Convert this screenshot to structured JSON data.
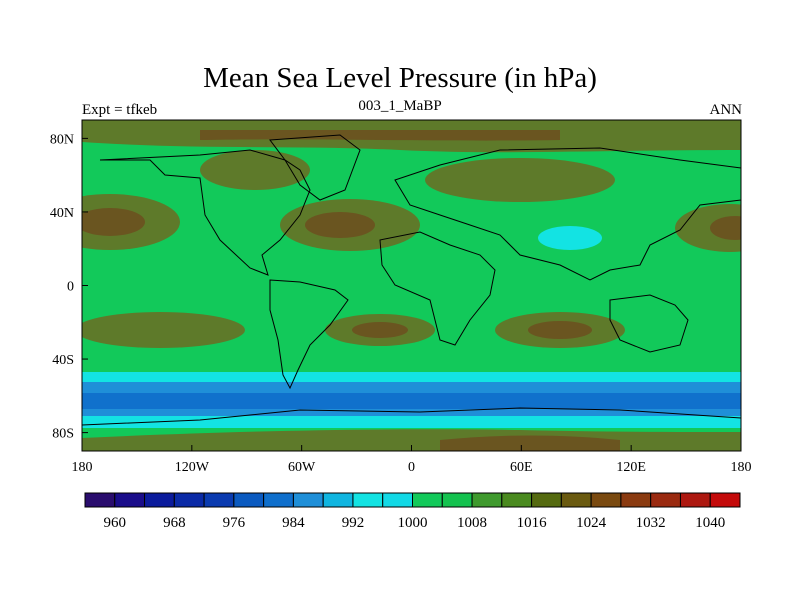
{
  "map": {
    "title": "Mean Sea Level Pressure (in hPa)",
    "subtitle": "003_1_MaBP",
    "left_label": "Expt = tfkeb",
    "right_label": "ANN",
    "lon_ticks": [
      "180",
      "120W",
      "60W",
      "0",
      "60E",
      "120E",
      "180"
    ],
    "lon_values": [
      -180,
      -120,
      -60,
      0,
      60,
      120,
      180
    ],
    "lat_ticks": [
      "80N",
      "40N",
      "0",
      "40S",
      "80S"
    ],
    "lat_values": [
      80,
      40,
      0,
      -40,
      -80
    ]
  },
  "colorbar": {
    "labels": [
      "960",
      "968",
      "976",
      "984",
      "992",
      "1000",
      "1008",
      "1016",
      "1024",
      "1032",
      "1040"
    ],
    "label_values": [
      960,
      968,
      976,
      984,
      992,
      1000,
      1008,
      1016,
      1024,
      1032,
      1040
    ],
    "boundaries": [
      956,
      960,
      964,
      968,
      972,
      976,
      980,
      984,
      988,
      992,
      996,
      1000,
      1004,
      1008,
      1012,
      1016,
      1020,
      1024,
      1028,
      1032,
      1036,
      1040,
      1044
    ],
    "colors": [
      "#2a0d6e",
      "#1a0d8a",
      "#0b1b9c",
      "#0a2aa6",
      "#0a3bb0",
      "#0b5ac0",
      "#0f6fcc",
      "#1f8fd8",
      "#10b5e0",
      "#13e3e3",
      "#12d9e6",
      "#12c95a",
      "#14c24f",
      "#3f9a2e",
      "#4a8a1f",
      "#556a10",
      "#6a5a10",
      "#7a4a10",
      "#8a3a10",
      "#9a2a10",
      "#ad1810",
      "#c40a0a"
    ]
  },
  "colors": {
    "ocean_low": "#1071cc",
    "trough": "#13e3e3",
    "mid": "#12c95a",
    "high": "#5e7a2a",
    "very_high": "#6a5520"
  }
}
